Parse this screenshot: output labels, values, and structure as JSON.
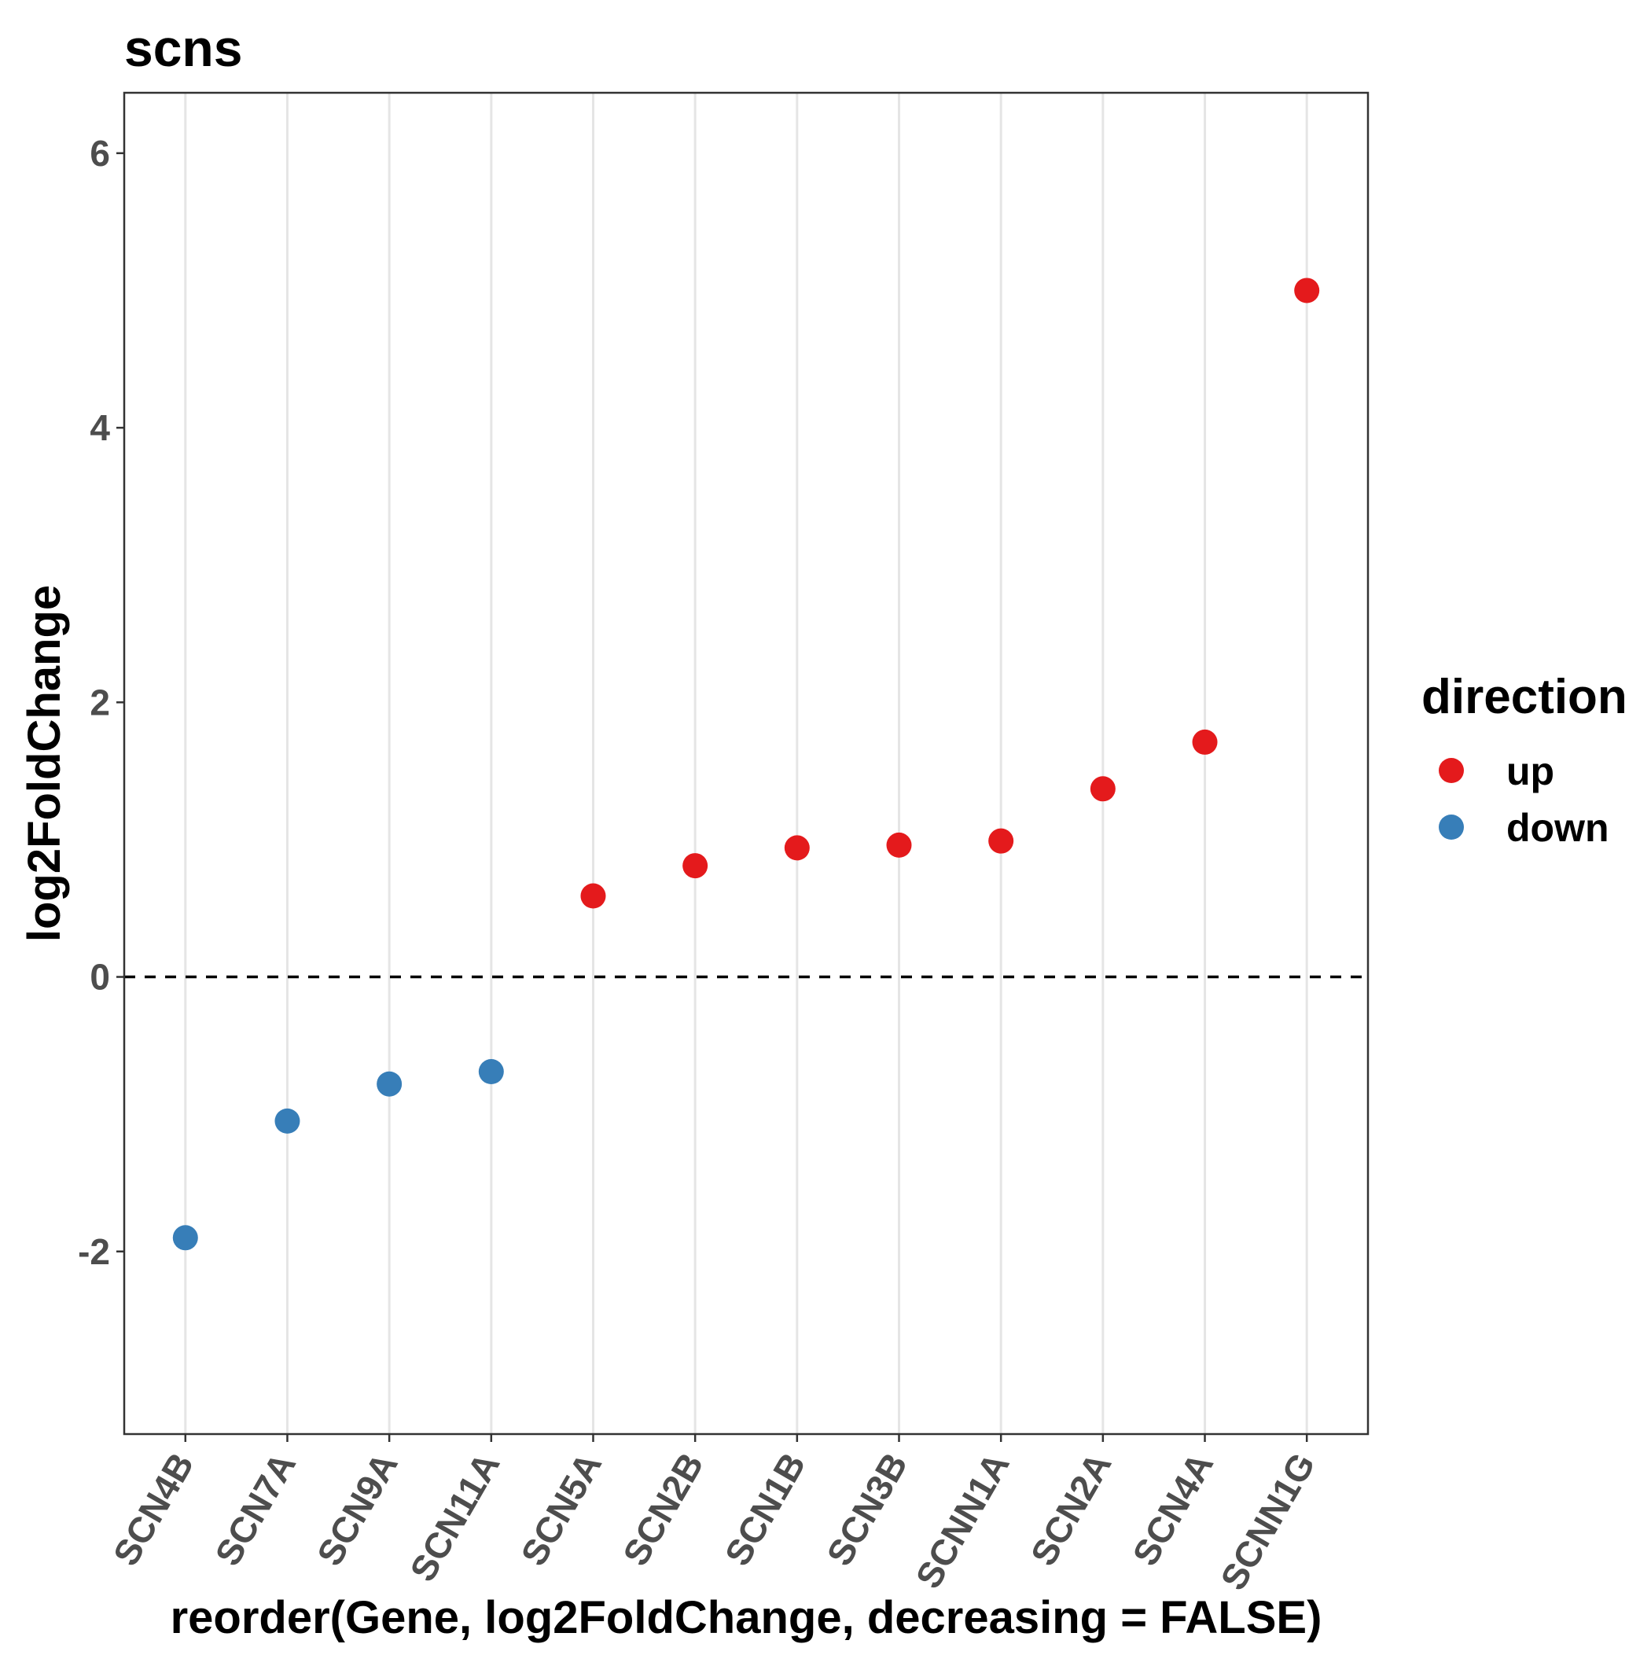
{
  "chart_data": {
    "type": "scatter",
    "title": "scns",
    "xlabel": "reorder(Gene, log2FoldChange, decreasing = FALSE)",
    "ylabel": "log2FoldChange",
    "categories": [
      "SCN4B",
      "SCN7A",
      "SCN9A",
      "SCN11A",
      "SCN5A",
      "SCN2B",
      "SCN1B",
      "SCN3B",
      "SCNN1A",
      "SCN2A",
      "SCN4A",
      "SCNN1G"
    ],
    "values": [
      -1.9,
      -1.05,
      -0.78,
      -0.69,
      0.59,
      0.81,
      0.94,
      0.96,
      0.99,
      1.37,
      1.71,
      5.0
    ],
    "direction": [
      "down",
      "down",
      "down",
      "down",
      "up",
      "up",
      "up",
      "up",
      "up",
      "up",
      "up",
      "up"
    ],
    "ylim": [
      -3.33,
      6.44
    ],
    "yticks": [
      -2,
      0,
      2,
      4,
      6
    ],
    "reference_line": {
      "y": 0,
      "style": "dashed"
    },
    "grid": "vertical major lines only",
    "legend": {
      "title": "direction",
      "placement": "right",
      "entries": [
        {
          "label": "up",
          "color": "#E41A1C"
        },
        {
          "label": "down",
          "color": "#377EB8"
        }
      ]
    },
    "x_tick_rotation": "60 degrees"
  }
}
